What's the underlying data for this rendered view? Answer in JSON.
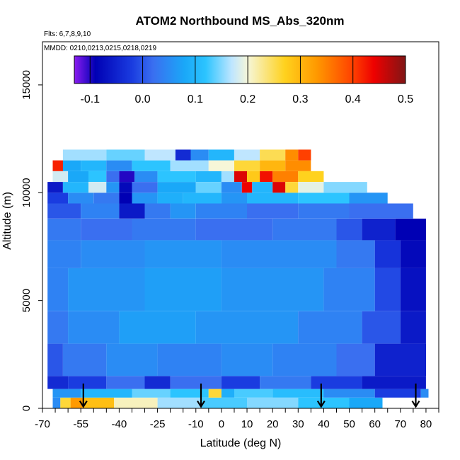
{
  "chart_data": {
    "type": "heatmap",
    "title": "ATOM2 Northbound MS_Abs_320nm",
    "flights_note": "Flts: 6,7,8,9,10",
    "dates_note": "MMDD: 0210,0213,0215,0218,0219",
    "xlabel": "Latitude (deg N)",
    "ylabel": "Altitude (m)",
    "xlim": [
      -70,
      85
    ],
    "ylim": [
      0,
      17000
    ],
    "x_ticks": [
      -70,
      -55,
      -40,
      -25,
      -10,
      0,
      10,
      20,
      30,
      40,
      50,
      60,
      70,
      80
    ],
    "y_ticks": [
      0,
      5000,
      10000,
      15000
    ],
    "colorbar": {
      "range": [
        -0.13,
        0.5
      ],
      "ticks": [
        -0.1,
        0.0,
        0.1,
        0.2,
        0.3,
        0.4,
        0.5
      ],
      "tick_labels": [
        "-0.1",
        "0.0",
        "0.1",
        "0.2",
        "0.3",
        "0.4",
        "0.5"
      ],
      "stops": [
        {
          "value": -0.13,
          "color": "#8b1cf0"
        },
        {
          "value": -0.09,
          "color": "#0000b4"
        },
        {
          "value": -0.02,
          "color": "#1a3ce0"
        },
        {
          "value": 0.02,
          "color": "#3a6ff0"
        },
        {
          "value": 0.08,
          "color": "#1aa8f8"
        },
        {
          "value": 0.12,
          "color": "#2cc4ff"
        },
        {
          "value": 0.17,
          "color": "#bfe6ff"
        },
        {
          "value": 0.2,
          "color": "#f6f6d8"
        },
        {
          "value": 0.27,
          "color": "#ffd21e"
        },
        {
          "value": 0.33,
          "color": "#ff9a00"
        },
        {
          "value": 0.4,
          "color": "#ff4000"
        },
        {
          "value": 0.44,
          "color": "#ee0000"
        },
        {
          "value": 0.5,
          "color": "#801515"
        }
      ]
    },
    "profile_markers": [
      -54,
      -8,
      39,
      76
    ],
    "layers": [
      {
        "alt": [
          0,
          500
        ],
        "segments": [
          [
            -66,
            -63,
            0.05
          ],
          [
            -63,
            -59,
            0.26
          ],
          [
            -59,
            -54,
            0.33
          ],
          [
            -54,
            -42,
            0.29
          ],
          [
            -42,
            -25,
            0.21
          ],
          [
            -25,
            -8,
            0.16
          ],
          [
            -8,
            10,
            0.13
          ],
          [
            10,
            30,
            0.15
          ],
          [
            30,
            50,
            0.12
          ],
          [
            50,
            63,
            0.08
          ]
        ]
      },
      {
        "alt": [
          500,
          900
        ],
        "segments": [
          [
            -66,
            -55,
            0.06
          ],
          [
            -55,
            -35,
            0.1
          ],
          [
            -35,
            -20,
            0.14
          ],
          [
            -20,
            -5,
            0.12
          ],
          [
            -5,
            0,
            0.26
          ],
          [
            0,
            5,
            0.09
          ],
          [
            5,
            20,
            0.13
          ],
          [
            20,
            40,
            0.11
          ],
          [
            40,
            60,
            0.05
          ],
          [
            60,
            78,
            -0.02
          ],
          [
            78,
            81,
            0.05
          ]
        ]
      },
      {
        "alt": [
          900,
          1500
        ],
        "segments": [
          [
            -68,
            -60,
            -0.04
          ],
          [
            -60,
            -45,
            -0.02
          ],
          [
            -45,
            -30,
            0.02
          ],
          [
            -30,
            -20,
            -0.04
          ],
          [
            -20,
            0,
            0.02
          ],
          [
            0,
            15,
            -0.02
          ],
          [
            15,
            35,
            0.03
          ],
          [
            35,
            55,
            -0.02
          ],
          [
            55,
            80,
            -0.06
          ]
        ]
      },
      {
        "alt": [
          1500,
          3000
        ],
        "segments": [
          [
            -68,
            -62,
            0.0
          ],
          [
            -62,
            -45,
            0.03
          ],
          [
            -45,
            -25,
            0.05
          ],
          [
            -25,
            0,
            0.04
          ],
          [
            0,
            20,
            0.05
          ],
          [
            20,
            45,
            0.04
          ],
          [
            45,
            60,
            0.02
          ],
          [
            60,
            80,
            -0.05
          ]
        ]
      },
      {
        "alt": [
          3000,
          4500
        ],
        "segments": [
          [
            -68,
            -60,
            0.03
          ],
          [
            -60,
            -40,
            0.05
          ],
          [
            -40,
            -10,
            0.07
          ],
          [
            -10,
            30,
            0.06
          ],
          [
            30,
            55,
            0.04
          ],
          [
            55,
            70,
            0.0
          ],
          [
            70,
            80,
            -0.06
          ]
        ]
      },
      {
        "alt": [
          4500,
          6500
        ],
        "segments": [
          [
            -68,
            -60,
            0.04
          ],
          [
            -60,
            -30,
            0.06
          ],
          [
            -30,
            0,
            0.07
          ],
          [
            0,
            40,
            0.06
          ],
          [
            40,
            60,
            0.04
          ],
          [
            60,
            70,
            -0.01
          ],
          [
            70,
            80,
            -0.07
          ]
        ]
      },
      {
        "alt": [
          6500,
          7800
        ],
        "segments": [
          [
            -68,
            -55,
            0.04
          ],
          [
            -55,
            -30,
            0.05
          ],
          [
            -30,
            0,
            0.06
          ],
          [
            0,
            45,
            0.05
          ],
          [
            45,
            60,
            0.03
          ],
          [
            60,
            70,
            -0.03
          ],
          [
            70,
            80,
            -0.08
          ]
        ]
      },
      {
        "alt": [
          7800,
          8800
        ],
        "segments": [
          [
            -68,
            -55,
            0.03
          ],
          [
            -55,
            -35,
            0.02
          ],
          [
            -35,
            -10,
            0.03
          ],
          [
            -10,
            20,
            0.02
          ],
          [
            20,
            45,
            0.03
          ],
          [
            45,
            55,
            0.0
          ],
          [
            55,
            68,
            -0.05
          ],
          [
            68,
            80,
            -0.09
          ]
        ]
      },
      {
        "alt": [
          8800,
          9500
        ],
        "segments": [
          [
            -68,
            -55,
            0.0
          ],
          [
            -55,
            -40,
            0.04
          ],
          [
            -40,
            -30,
            -0.06
          ],
          [
            -30,
            -20,
            0.03
          ],
          [
            -20,
            -10,
            0.06
          ],
          [
            -10,
            10,
            0.04
          ],
          [
            10,
            30,
            0.02
          ],
          [
            30,
            50,
            0.03
          ],
          [
            50,
            75,
            0.02
          ]
        ]
      },
      {
        "alt": [
          9500,
          10000
        ],
        "segments": [
          [
            -68,
            -60,
            -0.02
          ],
          [
            -60,
            -50,
            0.05
          ],
          [
            -50,
            -40,
            0.03
          ],
          [
            -40,
            -35,
            -0.09
          ],
          [
            -35,
            -25,
            0.06
          ],
          [
            -25,
            -15,
            0.09
          ],
          [
            -15,
            0,
            0.1
          ],
          [
            0,
            10,
            0.06
          ],
          [
            10,
            30,
            0.1
          ],
          [
            30,
            50,
            0.12
          ],
          [
            50,
            65,
            0.06
          ]
        ]
      },
      {
        "alt": [
          10000,
          10500
        ],
        "segments": [
          [
            -68,
            -62,
            -0.06
          ],
          [
            -62,
            -52,
            0.1
          ],
          [
            -52,
            -45,
            0.18
          ],
          [
            -45,
            -40,
            0.06
          ],
          [
            -40,
            -35,
            -0.08
          ],
          [
            -35,
            -25,
            0.02
          ],
          [
            -25,
            -10,
            0.08
          ],
          [
            -10,
            0,
            0.14
          ],
          [
            0,
            8,
            0.05
          ],
          [
            8,
            12,
            0.44
          ],
          [
            12,
            20,
            0.1
          ],
          [
            20,
            25,
            0.45
          ],
          [
            25,
            30,
            0.26
          ],
          [
            30,
            40,
            0.19
          ],
          [
            40,
            57,
            0.15
          ]
        ]
      },
      {
        "alt": [
          10500,
          11000
        ],
        "segments": [
          [
            -66,
            -60,
            0.18
          ],
          [
            -60,
            -52,
            0.08
          ],
          [
            -52,
            -45,
            0.12
          ],
          [
            -45,
            -40,
            0.02
          ],
          [
            -40,
            -34,
            -0.1
          ],
          [
            -34,
            -25,
            0.05
          ],
          [
            -25,
            -10,
            0.12
          ],
          [
            -10,
            0,
            0.1
          ],
          [
            0,
            5,
            0.16
          ],
          [
            5,
            10,
            0.45
          ],
          [
            10,
            15,
            0.28
          ],
          [
            15,
            20,
            0.43
          ],
          [
            20,
            30,
            0.35
          ],
          [
            30,
            40,
            0.27
          ]
        ]
      },
      {
        "alt": [
          11000,
          11500
        ],
        "segments": [
          [
            -66,
            -62,
            0.42
          ],
          [
            -62,
            -55,
            0.08
          ],
          [
            -55,
            -45,
            0.1
          ],
          [
            -45,
            -35,
            0.05
          ],
          [
            -35,
            -20,
            0.12
          ],
          [
            -20,
            -5,
            0.16
          ],
          [
            -5,
            5,
            0.2
          ],
          [
            5,
            15,
            0.26
          ],
          [
            15,
            25,
            0.3
          ],
          [
            25,
            35,
            0.34
          ]
        ]
      },
      {
        "alt": [
          11500,
          12000
        ],
        "segments": [
          [
            -62,
            -45,
            0.16
          ],
          [
            -45,
            -30,
            0.14
          ],
          [
            -30,
            -18,
            0.17
          ],
          [
            -18,
            -12,
            -0.04
          ],
          [
            -12,
            -5,
            0.05
          ],
          [
            -5,
            5,
            0.1
          ],
          [
            5,
            15,
            0.17
          ],
          [
            15,
            25,
            0.25
          ],
          [
            25,
            30,
            0.34
          ],
          [
            30,
            35,
            0.4
          ]
        ]
      }
    ]
  }
}
